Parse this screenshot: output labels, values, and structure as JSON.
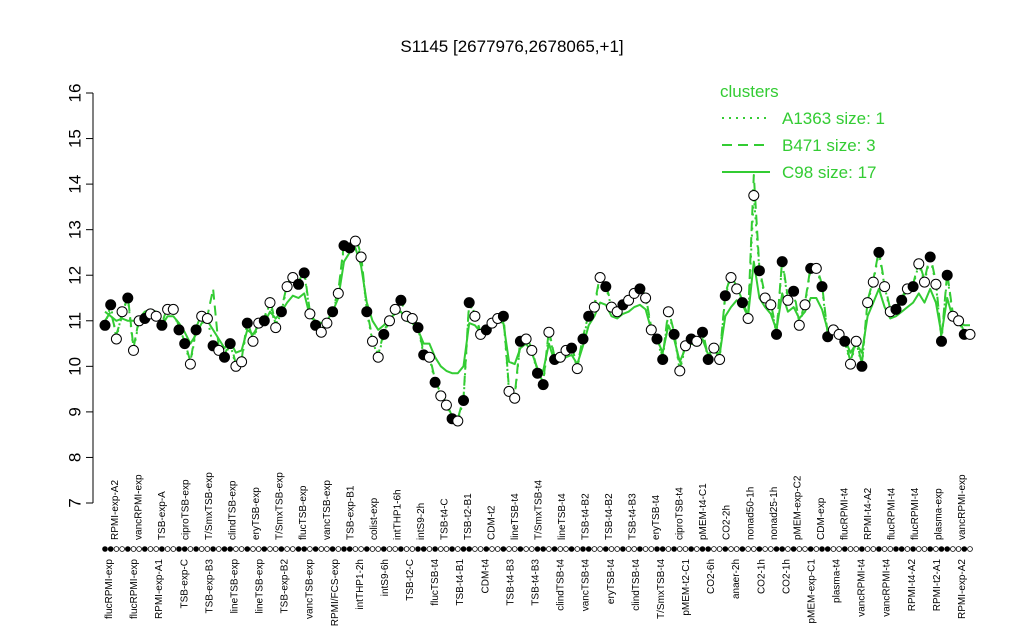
{
  "chart_data": {
    "type": "line",
    "title": "S1145 [2677976,2678065,+1]",
    "xlabel": "",
    "ylabel": "",
    "ylim": [
      7,
      16
    ],
    "yticks": [
      7,
      8,
      9,
      10,
      11,
      12,
      13,
      14,
      15,
      16
    ],
    "grid": false,
    "legend": {
      "title": "clusters",
      "placement": "top-right",
      "entries": [
        {
          "label": "A1363 size: 1",
          "style": "dotted"
        },
        {
          "label": "B471 size: 3",
          "style": "dashed"
        },
        {
          "label": "C98 size: 17",
          "style": "solid"
        }
      ]
    },
    "top_labels": [
      "RPMI-exp-A2",
      "vancRPMI-exp",
      "TSB-exp-A",
      "ciproTSB-exp",
      "T/SmxTSB-exp",
      "clindTSB-exp",
      "eryTSB-exp",
      "T/SmxTSB-exp",
      "flucTSB-exp",
      "vancTSB-exp",
      "TSB-exp-B1",
      "colist-exp",
      "intTHP1-6h",
      "intS9-2h",
      "TSB-t4-C",
      "TSB-t2-B1",
      "CDM-t2",
      "lineTSB-t4",
      "T/SmxTSB-t4",
      "lineTSB-t4",
      "TSB-t4-B2",
      "TSB-t4-B2",
      "TSB-t4-B3",
      "eryTSB-t4",
      "ciproTSB-t4",
      "pMEM-t4-C1",
      "CO2-2h",
      "nonad50-1h",
      "nonad25-1h",
      "pMEM-exp-C2",
      "CDM-exp",
      "flucRPMI-t4",
      "RPMI-t4-A2",
      "flucRPMI-t4",
      "flucRPMI-t4",
      "plasma-exp",
      "vancRPMI-exp"
    ],
    "bottom_labels": [
      "flucRPMI-exp",
      "flucRPMI-exp",
      "RPMI-exp-A1",
      "TSB-exp-C",
      "TSB-exp-B3",
      "lineTSB-exp",
      "lineTSB-exp",
      "TSB-exp-B2",
      "vancTSB-exp",
      "RPMI/FCS-exp",
      "intTHP1-2h",
      "intS9-6h",
      "TSB-t2-C",
      "flucTSB-t4",
      "TSB-t4-B1",
      "CDM-t4",
      "TSB-t4-B3",
      "TSB-t4-B3",
      "clindTSB-t4",
      "vancTSB-t4",
      "eryTSB-t4",
      "clindTSB-t4",
      "T/SmxTSB-t4",
      "pMEM-t2-C1",
      "CO2-6h",
      "anaer-2h",
      "CO2-1h",
      "CO2-1h",
      "pMEM-exp-C1",
      "plasma-t4",
      "vancRPMI-t4",
      "vancRPMI-t4",
      "RPMI-t4-A2",
      "RPMI-t2-A1",
      "RPMI-exp-A2"
    ],
    "series": [
      {
        "name": "A1363 size: 1",
        "style": "dotted",
        "values": [
          10.9,
          11.35,
          10.6,
          11.2,
          11.5,
          10.35,
          11.0,
          11.05,
          11.15,
          11.1,
          10.9,
          11.25,
          11.25,
          10.8,
          10.5,
          10.05,
          10.8,
          11.1,
          11.05,
          10.45,
          10.35,
          10.2,
          10.5,
          10.0,
          10.1,
          10.95,
          10.55,
          10.95,
          11.0,
          11.4,
          10.85,
          11.2,
          11.75,
          11.95,
          11.8,
          12.05,
          11.15,
          10.9,
          10.75,
          10.95,
          11.2,
          11.6,
          12.65,
          12.6,
          12.75,
          12.4,
          11.2,
          10.55,
          10.2,
          10.7,
          11.0,
          11.25,
          11.45,
          11.1,
          11.05,
          10.85,
          10.25,
          10.2,
          9.65,
          9.35,
          9.15,
          8.85,
          8.8,
          9.25,
          11.4,
          11.1,
          10.7,
          10.8,
          10.95,
          11.05,
          11.1,
          9.45,
          9.3,
          10.55,
          10.6,
          10.35,
          9.85,
          9.6,
          10.75,
          10.15,
          10.2,
          10.35,
          10.4,
          9.95,
          10.6,
          11.1,
          11.3,
          11.95,
          11.75,
          11.3,
          11.2,
          11.35,
          11.45,
          11.6,
          11.7,
          11.5,
          10.8,
          10.6,
          10.15,
          11.2,
          10.7,
          9.9,
          10.45,
          10.6,
          10.55,
          10.75,
          10.15,
          10.4,
          10.15,
          11.55,
          11.95,
          11.7,
          11.4,
          11.05,
          13.75,
          12.1,
          11.5,
          11.35,
          10.7,
          12.3,
          11.45,
          11.65,
          10.9,
          11.35,
          12.15,
          12.15,
          11.75,
          10.65,
          10.8,
          10.7,
          10.55,
          10.05,
          10.55,
          10.0,
          11.4,
          11.85,
          12.5,
          11.75,
          11.2,
          11.25,
          11.45,
          11.7,
          11.75,
          12.25,
          11.85,
          12.4,
          11.8,
          10.55,
          12.0,
          11.1,
          11.0,
          10.7,
          10.7
        ],
        "dots": [
          {
            "x": 5,
            "y": 10.9,
            "f": 1
          },
          {
            "x": 5,
            "y": 11.35,
            "f": 1
          },
          {
            "x": 6,
            "y": 10.6,
            "f": 0
          },
          {
            "x": 6.5,
            "y": 11.2,
            "f": 1
          },
          {
            "x": 7,
            "y": 11.5,
            "f": 0
          },
          {
            "x": 7.5,
            "y": 10.35,
            "f": 1
          },
          {
            "x": 7.5,
            "y": 11.0,
            "f": 0
          },
          {
            "x": 8.5,
            "y": 11.05,
            "f": 1
          },
          {
            "x": 9,
            "y": 11.15,
            "f": 0
          },
          {
            "x": 9.5,
            "y": 11.1,
            "f": 0
          },
          {
            "x": 10,
            "y": 10.9,
            "f": 0
          },
          {
            "x": 10.5,
            "y": 11.25,
            "f": 0
          },
          {
            "x": 12,
            "y": 10.8,
            "f": 1
          },
          {
            "x": 12.5,
            "y": 10.5,
            "f": 1
          },
          {
            "x": 13,
            "y": 10.05,
            "f": 1
          }
        ]
      },
      {
        "name": "B471 size: 3",
        "style": "dashed",
        "values": [
          11.0,
          11.2,
          10.7,
          11.1,
          11.55,
          10.4,
          11.05,
          11.1,
          11.2,
          11.15,
          10.95,
          11.3,
          11.3,
          10.85,
          10.55,
          10.1,
          10.85,
          11.15,
          11.1,
          11.7,
          10.4,
          10.25,
          10.55,
          10.05,
          10.15,
          11.0,
          10.6,
          11.0,
          11.05,
          11.5,
          10.9,
          11.25,
          11.8,
          12.0,
          11.85,
          12.1,
          11.2,
          10.95,
          10.8,
          11.0,
          11.25,
          11.65,
          12.7,
          12.65,
          12.85,
          12.45,
          11.25,
          10.6,
          10.25,
          10.75,
          11.05,
          11.3,
          11.5,
          11.15,
          11.1,
          10.9,
          10.3,
          10.25,
          9.7,
          9.4,
          9.2,
          8.9,
          8.85,
          9.3,
          11.45,
          11.15,
          10.75,
          10.85,
          11.0,
          11.1,
          11.15,
          9.5,
          9.35,
          10.6,
          10.65,
          10.4,
          9.9,
          9.65,
          10.8,
          10.2,
          10.25,
          10.4,
          10.45,
          10.0,
          10.65,
          11.15,
          11.35,
          12.0,
          11.8,
          11.35,
          11.25,
          11.4,
          11.5,
          11.65,
          11.75,
          11.55,
          10.85,
          10.65,
          10.2,
          11.25,
          10.75,
          9.95,
          10.5,
          10.65,
          10.6,
          10.8,
          10.2,
          10.45,
          10.2,
          11.6,
          12.0,
          11.75,
          11.45,
          11.1,
          14.2,
          12.15,
          11.55,
          11.4,
          10.75,
          12.35,
          11.5,
          11.7,
          10.95,
          11.4,
          12.2,
          12.2,
          11.8,
          10.7,
          10.85,
          10.75,
          10.6,
          10.1,
          10.6,
          10.05,
          11.45,
          11.9,
          12.55,
          11.8,
          11.25,
          11.3,
          11.5,
          11.75,
          11.8,
          12.3,
          11.9,
          12.45,
          11.85,
          10.6,
          12.05,
          11.15,
          11.05,
          10.75,
          10.75
        ]
      },
      {
        "name": "C98 size: 17",
        "style": "solid",
        "values": [
          11.2,
          11.1,
          11.0,
          11.05,
          11.0,
          11.0,
          11.05,
          11.2,
          11.25,
          11.2,
          10.9,
          11.1,
          11.1,
          10.95,
          10.75,
          10.5,
          10.7,
          10.95,
          11.0,
          10.8,
          10.6,
          10.4,
          10.55,
          10.3,
          10.35,
          10.8,
          10.7,
          10.9,
          10.95,
          11.2,
          11.05,
          11.2,
          11.4,
          11.55,
          11.5,
          11.6,
          11.1,
          11.0,
          10.95,
          11.0,
          11.2,
          11.5,
          12.3,
          12.5,
          12.6,
          12.2,
          11.4,
          11.0,
          10.8,
          10.9,
          11.05,
          11.15,
          11.2,
          11.0,
          10.95,
          10.8,
          10.5,
          10.5,
          10.2,
          10.0,
          9.9,
          9.85,
          9.85,
          10.0,
          10.95,
          10.9,
          10.75,
          10.85,
          10.95,
          11.0,
          10.95,
          10.1,
          10.05,
          10.4,
          10.5,
          10.3,
          9.95,
          9.9,
          10.5,
          10.1,
          10.1,
          10.2,
          10.25,
          10.05,
          10.45,
          10.9,
          11.1,
          11.4,
          11.35,
          11.1,
          11.05,
          11.15,
          11.2,
          11.3,
          11.35,
          11.25,
          10.8,
          10.6,
          10.3,
          10.9,
          10.6,
          10.1,
          10.4,
          10.5,
          10.45,
          10.6,
          10.25,
          10.4,
          10.25,
          11.1,
          11.3,
          11.45,
          11.35,
          11.1,
          12.3,
          11.5,
          11.3,
          11.15,
          10.8,
          11.6,
          11.2,
          11.3,
          11.05,
          11.2,
          11.5,
          11.5,
          11.25,
          10.8,
          10.85,
          10.8,
          10.6,
          10.3,
          10.5,
          10.3,
          11.1,
          11.4,
          11.7,
          11.3,
          11.05,
          11.1,
          11.2,
          11.3,
          11.4,
          11.6,
          11.4,
          11.7,
          11.4,
          10.7,
          11.5,
          11.05,
          11.0,
          10.9,
          10.9
        ]
      }
    ]
  }
}
